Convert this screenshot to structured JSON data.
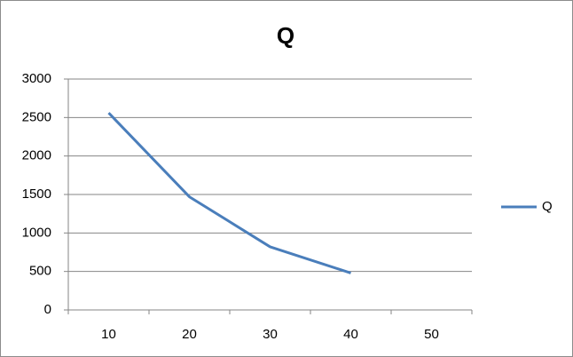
{
  "chart_data": {
    "type": "line",
    "title": "Q",
    "categories": [
      "10",
      "20",
      "30",
      "40",
      "50"
    ],
    "series": [
      {
        "name": "Q",
        "color": "#4a7ebb",
        "values": [
          2560,
          1470,
          820,
          480,
          null
        ]
      }
    ],
    "ylim": [
      0,
      3000
    ],
    "yticks": [
      0,
      500,
      1000,
      1500,
      2000,
      2500,
      3000
    ],
    "grid": true,
    "legend": "right"
  }
}
